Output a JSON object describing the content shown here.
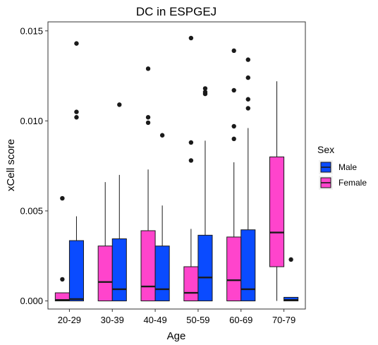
{
  "chart_data": {
    "type": "boxplot",
    "title": "DC in ESPGEJ",
    "xlabel": "Age",
    "ylabel": "xCell score",
    "ylim": [
      -0.00045,
      0.0155
    ],
    "yticks": [
      "0.000",
      "0.005",
      "0.010",
      "0.015"
    ],
    "ytick_values": [
      0,
      0.005,
      0.01,
      0.015
    ],
    "categories": [
      "20-29",
      "30-39",
      "40-49",
      "50-59",
      "60-69",
      "70-79"
    ],
    "legend": {
      "title": "Sex",
      "position": "right"
    },
    "series": [
      {
        "name": "Male",
        "color": "#0A4BFF",
        "boxes": [
          {
            "category": "20-29",
            "min": 0,
            "q1": 0,
            "median": 0.0001,
            "q3": 0.00335,
            "max": 0.0047,
            "outliers": [
              0.0102,
              0.0105,
              0.0143
            ]
          },
          {
            "category": "30-39",
            "min": 0,
            "q1": 0,
            "median": 0.00065,
            "q3": 0.00345,
            "max": 0.007,
            "outliers": [
              0.0109
            ]
          },
          {
            "category": "40-49",
            "min": 0,
            "q1": 0,
            "median": 0.00065,
            "q3": 0.00305,
            "max": 0.0053,
            "outliers": [
              0.0092
            ]
          },
          {
            "category": "50-59",
            "min": 0,
            "q1": 0,
            "median": 0.0013,
            "q3": 0.00365,
            "max": 0.0089,
            "outliers": [
              0.0115,
              0.0116,
              0.0118
            ]
          },
          {
            "category": "60-69",
            "min": 0,
            "q1": 0,
            "median": 0.00065,
            "q3": 0.00395,
            "max": 0.0096,
            "outliers": [
              0.0107,
              0.0112,
              0.0124,
              0.0134
            ]
          },
          {
            "category": "70-79",
            "min": 0,
            "q1": 0,
            "median": 5e-05,
            "q3": 0.0002,
            "max": 0.0002,
            "outliers": [
              0.0023
            ]
          }
        ]
      },
      {
        "name": "Female",
        "color": "#FF44CC",
        "boxes": [
          {
            "category": "20-29",
            "min": 0,
            "q1": 0,
            "median": 5e-05,
            "q3": 0.00045,
            "max": 0.00045,
            "outliers": [
              0.0012,
              0.0057
            ]
          },
          {
            "category": "30-39",
            "min": 0,
            "q1": 0,
            "median": 0.00105,
            "q3": 0.00305,
            "max": 0.0066,
            "outliers": []
          },
          {
            "category": "40-49",
            "min": 0,
            "q1": 0,
            "median": 0.0008,
            "q3": 0.0039,
            "max": 0.0073,
            "outliers": [
              0.0099,
              0.0102,
              0.0129
            ]
          },
          {
            "category": "50-59",
            "min": 0,
            "q1": 0,
            "median": 0.00045,
            "q3": 0.0019,
            "max": 0.004,
            "outliers": [
              0.0078,
              0.0088,
              0.0146
            ]
          },
          {
            "category": "60-69",
            "min": 0,
            "q1": 0,
            "median": 0.00115,
            "q3": 0.00355,
            "max": 0.0077,
            "outliers": [
              0.009,
              0.0097,
              0.0117,
              0.0139
            ]
          },
          {
            "category": "70-79",
            "min": 0,
            "q1": 0.0019,
            "median": 0.0038,
            "q3": 0.008,
            "max": 0.0122,
            "outliers": []
          }
        ]
      }
    ],
    "grid": false
  }
}
